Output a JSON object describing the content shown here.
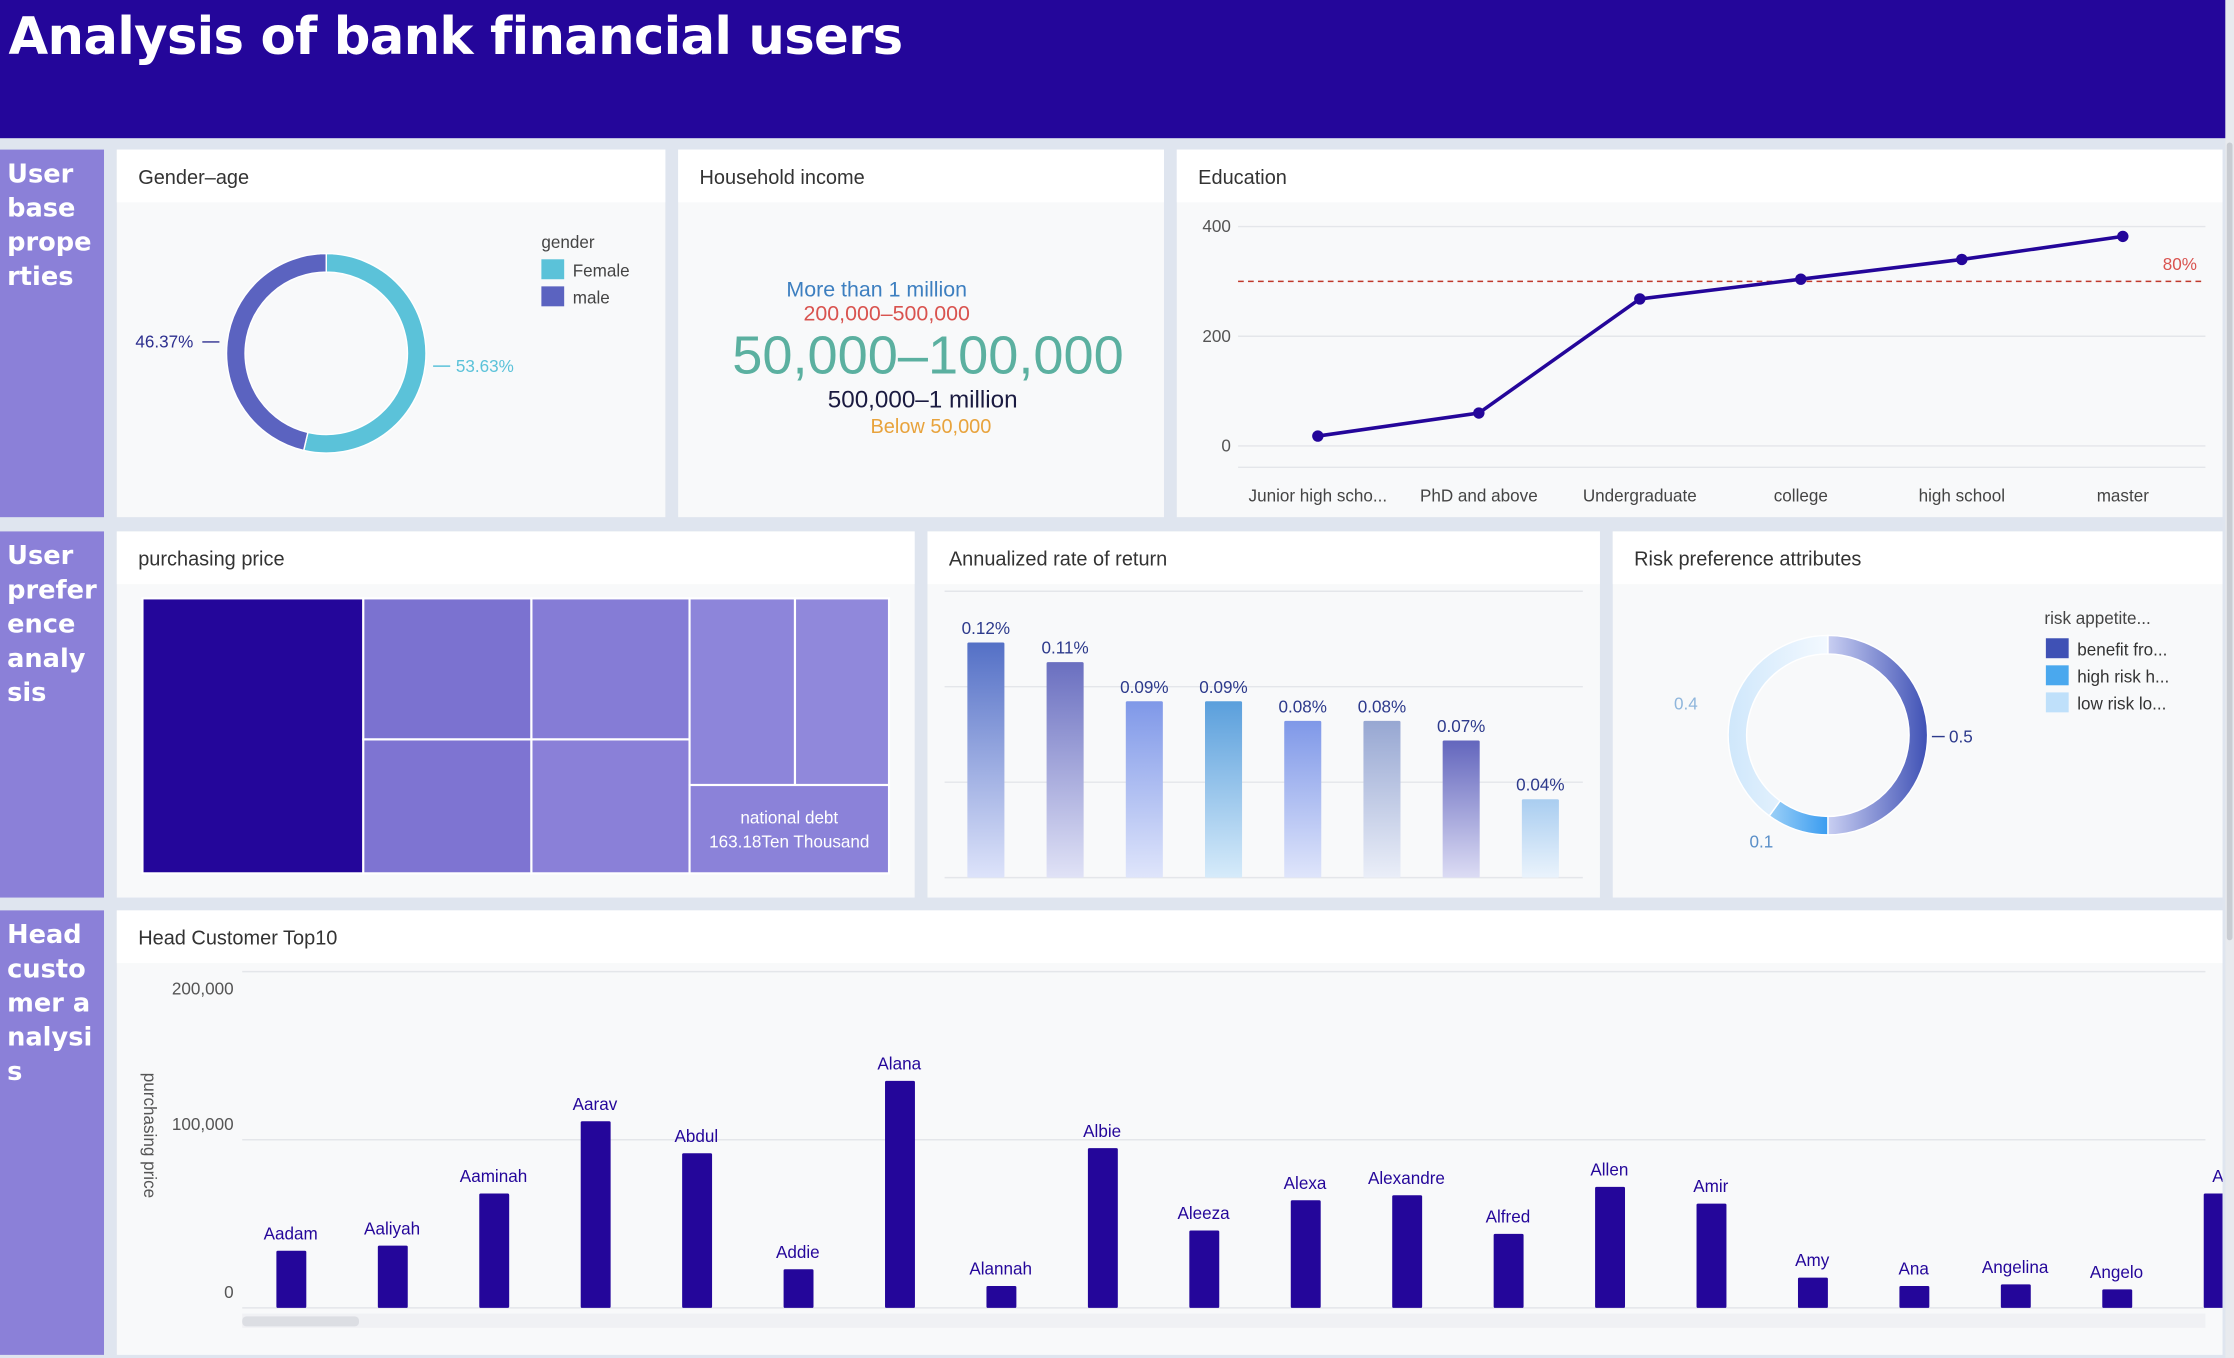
{
  "header": {
    "title": "Analysis of bank financial users"
  },
  "sections": [
    "User base properties",
    "User preference analysis",
    "Head customer analysis"
  ],
  "colors": {
    "header": "#24069a",
    "sidebar": "#8b80d8",
    "bar": "#24069a",
    "female": "#5bc2d9",
    "male": "#5b63c0"
  },
  "gender": {
    "title": "Gender–age",
    "legend_title": "gender",
    "items": [
      {
        "label": "Female",
        "value": "53.63%",
        "color": "#5bc2d9",
        "pct": 53.63
      },
      {
        "label": "male",
        "value": "46.37%",
        "color": "#5b63c0",
        "pct": 46.37
      }
    ]
  },
  "income": {
    "title": "Household income",
    "words": [
      "More than 1 million",
      "200,000–500,000",
      "50,000–100,000",
      "500,000–1 million",
      "Below 50,000"
    ]
  },
  "chart_data": [
    {
      "type": "line",
      "title": "Education",
      "categories": [
        "Junior high scho...",
        "PhD and above",
        "Undergraduate",
        "college",
        "high school",
        "master"
      ],
      "values": [
        18,
        60,
        268,
        304,
        340,
        382
      ],
      "yticks": [
        "0",
        "200",
        "400"
      ],
      "ylim": [
        0,
        400
      ],
      "reference_line": {
        "value": 300,
        "label": "80%"
      }
    },
    {
      "type": "bar",
      "title": "Annualized rate of return",
      "values": [
        0.12,
        0.11,
        0.09,
        0.09,
        0.08,
        0.08,
        0.07,
        0.04
      ],
      "labels": [
        "0.12%",
        "0.11%",
        "0.09%",
        "0.09%",
        "0.08%",
        "0.08%",
        "0.07%",
        "0.04%"
      ]
    },
    {
      "type": "pie",
      "title": "Risk preference attributes",
      "legend_title": "risk appetite...",
      "items": [
        {
          "label": "benefit fro...",
          "value": 0.5,
          "text": "0.5"
        },
        {
          "label": "high risk h...",
          "value": 0.1,
          "text": "0.1"
        },
        {
          "label": "low risk lo...",
          "value": 0.4,
          "text": "0.4"
        }
      ]
    },
    {
      "type": "bar",
      "title": "Head Customer Top10",
      "ylabel": "purchasing price",
      "yticks": [
        "0",
        "100,000",
        "200,000"
      ],
      "ylim": [
        0,
        200000
      ],
      "categories": [
        "Aadam",
        "Aaliyah",
        "Aaminah",
        "Aarav",
        "Abdul",
        "Addie",
        "Alana",
        "Alannah",
        "Albie",
        "Aleeza",
        "Alexa",
        "Alexandre",
        "Alfred",
        "Allen",
        "Amir",
        "Amy",
        "Ana",
        "Angelina",
        "Angelo",
        "A"
      ],
      "values": [
        34000,
        37000,
        68000,
        111000,
        92000,
        23000,
        135000,
        13000,
        95000,
        46000,
        64000,
        67000,
        44000,
        72000,
        62000,
        18000,
        13000,
        14000,
        11000,
        68000
      ]
    }
  ],
  "treemap": {
    "title": "purchasing price",
    "label_name": "national debt",
    "label_value": "163.18Ten Thousand"
  }
}
